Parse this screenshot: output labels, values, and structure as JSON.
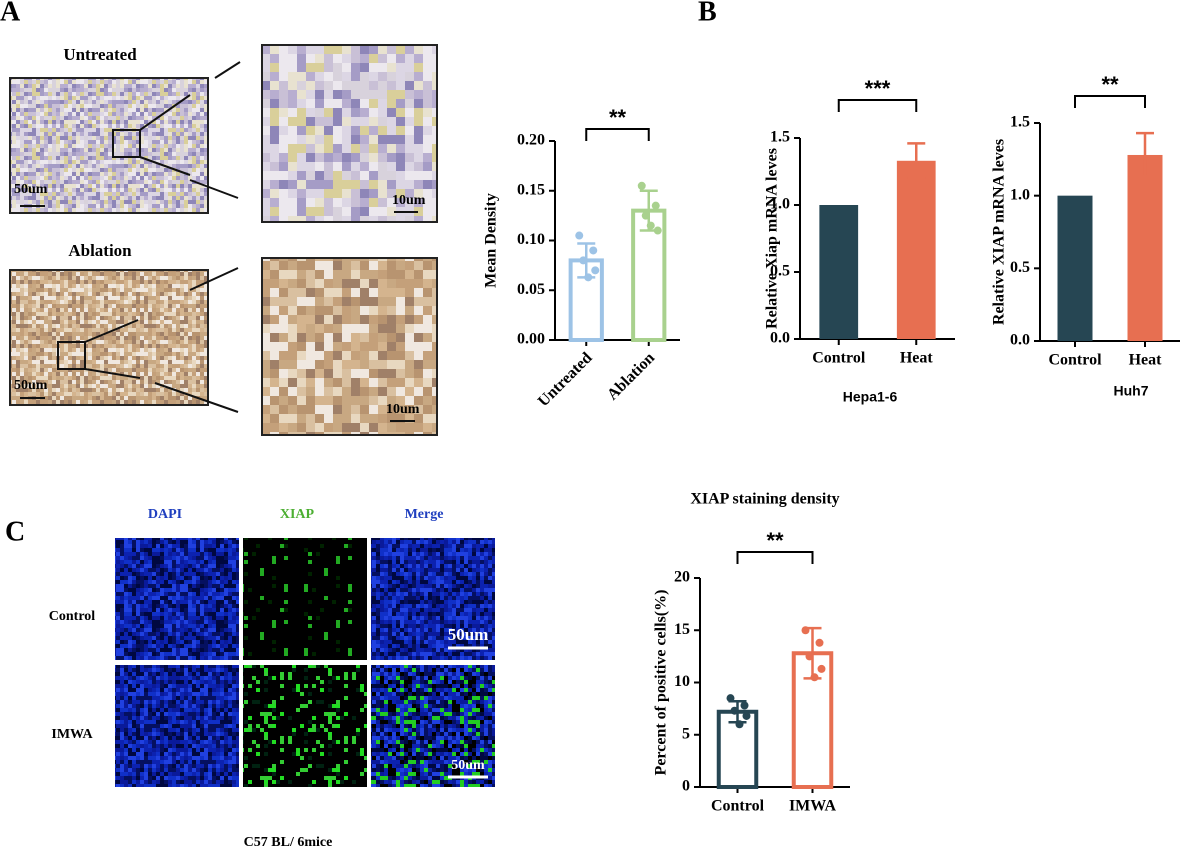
{
  "figure": {
    "panel_labels": [
      "A",
      "B",
      "C"
    ],
    "A_rows": [
      "Untreated",
      "Ablation"
    ],
    "A_scale_bars": [
      "50um",
      "10um",
      "50um",
      "10um"
    ],
    "C_channels": [
      "DAPI",
      "XIAP",
      "Merge"
    ],
    "C_rows": [
      "Control",
      "IMWA"
    ],
    "C_scale_bars": [
      "50um",
      "50um"
    ],
    "C_footer": "C57 BL/ 6mice"
  },
  "chart_data": [
    {
      "type": "bar",
      "ylabel": "Mean Density",
      "categories": [
        "Untreated",
        "Ablation"
      ],
      "values": [
        0.08,
        0.13
      ],
      "errors": [
        0.017,
        0.02
      ],
      "colors": [
        "#9dc3e6",
        "#a9d18e"
      ],
      "filled": false,
      "points": [
        [
          0.105,
          0.09,
          0.08,
          0.07,
          0.063
        ],
        [
          0.155,
          0.135,
          0.125,
          0.11,
          0.115
        ]
      ],
      "ylim": [
        0,
        0.2
      ],
      "yticks": [
        {
          "value": 0,
          "label": "0.00"
        },
        {
          "value": 0.05,
          "label": "0.05"
        },
        {
          "value": 0.1,
          "label": "0.10"
        },
        {
          "value": 0.15,
          "label": "0.15"
        },
        {
          "value": 0.2,
          "label": "0.20"
        }
      ],
      "significance": "**"
    },
    {
      "type": "bar",
      "ylabel": "Relative Xiap mRNA leves",
      "xlabel": "Hepa1-6",
      "categories": [
        "Control",
        "Heat"
      ],
      "values": [
        1.0,
        1.33
      ],
      "errors": [
        null,
        0.13
      ],
      "colors": [
        "#264653",
        "#e76f51"
      ],
      "filled": true,
      "ylim": [
        0,
        1.5
      ],
      "yticks": [
        {
          "value": 0,
          "label": "0.0"
        },
        {
          "value": 0.5,
          "label": "0.5"
        },
        {
          "value": 1,
          "label": "1.0"
        },
        {
          "value": 1.5,
          "label": "1.5"
        }
      ],
      "significance": "***"
    },
    {
      "type": "bar",
      "ylabel": "Relative XIAP mRNA leves",
      "xlabel": "Huh7",
      "categories": [
        "Control",
        "Heat"
      ],
      "values": [
        1.0,
        1.28
      ],
      "errors": [
        null,
        0.15
      ],
      "colors": [
        "#264653",
        "#e76f51"
      ],
      "filled": true,
      "ylim": [
        0,
        1.5
      ],
      "yticks": [
        {
          "value": 0,
          "label": "0.0"
        },
        {
          "value": 0.5,
          "label": "0.5"
        },
        {
          "value": 1,
          "label": "1.0"
        },
        {
          "value": 1.5,
          "label": "1.5"
        }
      ],
      "significance": "**"
    },
    {
      "type": "bar",
      "title": "XIAP staining density",
      "ylabel": "Percent of positive cells(%)",
      "categories": [
        "Control",
        "IMWA"
      ],
      "values": [
        7.2,
        12.8
      ],
      "errors": [
        1.0,
        2.4
      ],
      "colors": [
        "#264653",
        "#e76f51"
      ],
      "filled": false,
      "points": [
        [
          8.5,
          7.8,
          7.3,
          6.8,
          6.0
        ],
        [
          15.0,
          13.8,
          12.5,
          11.3,
          10.5
        ]
      ],
      "ylim": [
        0,
        20
      ],
      "yticks": [
        0,
        5,
        10,
        15,
        20
      ],
      "significance": "**"
    }
  ]
}
